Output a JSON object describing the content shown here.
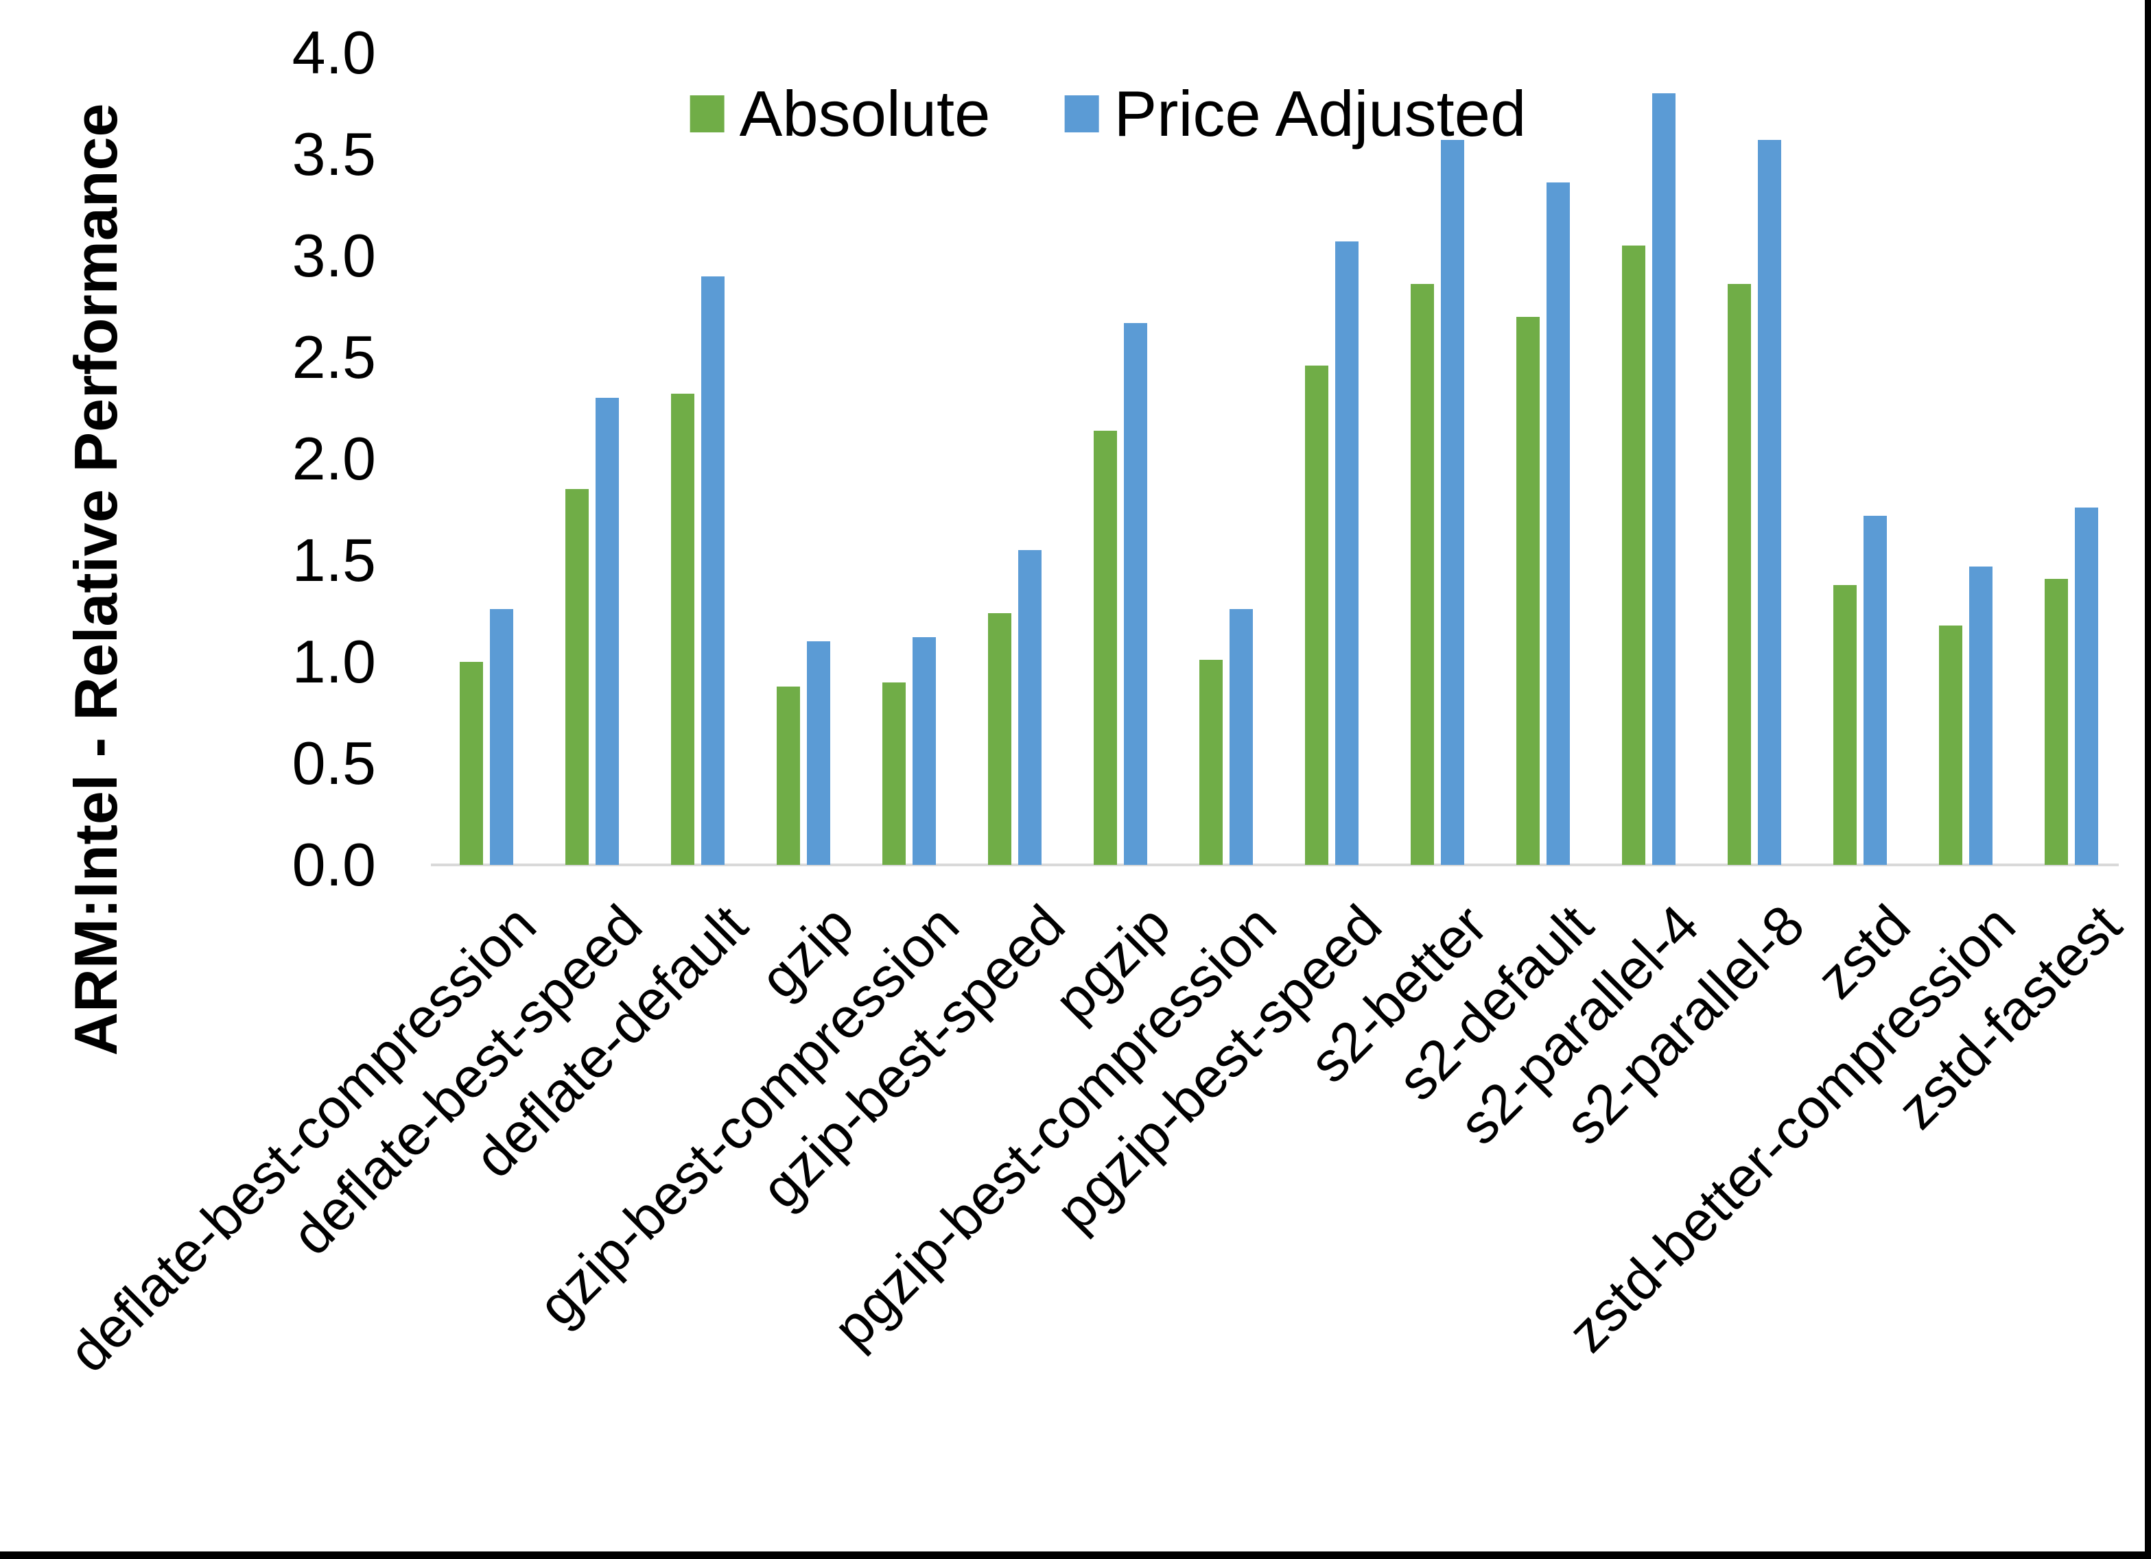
{
  "y_axis": {
    "title": "ARM:Intel - Relative Performance",
    "tick_labels": [
      "0.0",
      "0.5",
      "1.0",
      "1.5",
      "2.0",
      "2.5",
      "3.0",
      "3.5",
      "4.0"
    ]
  },
  "legend": {
    "items": [
      {
        "label": "Absolute",
        "color": "#70AD47"
      },
      {
        "label": "Price Adjusted",
        "color": "#5B9BD5"
      }
    ]
  },
  "colors": {
    "absolute_green": "#70AD47",
    "price_adjusted_blue": "#5B9BD5",
    "axis_line_gray": "#D9D9D9",
    "window_border_black": "#000000"
  },
  "chart_data": {
    "type": "bar",
    "title": "",
    "xlabel": "",
    "ylabel": "ARM:Intel - Relative Performance",
    "ylim": [
      0.0,
      4.0
    ],
    "ytick_step": 0.5,
    "grid": false,
    "legend_position": "top-center",
    "categories": [
      "deflate-best-compression",
      "deflate-best-speed",
      "deflate-default",
      "gzip",
      "gzip-best-compression",
      "gzip-best-speed",
      "pgzip",
      "pgzip-best-compression",
      "pgzip-best-speed",
      "s2-better",
      "s2-default",
      "s2-parallel-4",
      "s2-parallel-8",
      "zstd",
      "zstd-better-compression",
      "zstd-fastest"
    ],
    "series": [
      {
        "name": "Absolute",
        "color": "#70AD47",
        "values": [
          1.0,
          1.85,
          2.32,
          0.88,
          0.9,
          1.24,
          2.14,
          1.01,
          2.46,
          2.86,
          2.7,
          3.05,
          2.86,
          1.38,
          1.18,
          1.41
        ]
      },
      {
        "name": "Price Adjusted",
        "color": "#5B9BD5",
        "values": [
          1.26,
          2.3,
          2.9,
          1.1,
          1.12,
          1.55,
          2.67,
          1.26,
          3.07,
          3.57,
          3.36,
          3.8,
          3.57,
          1.72,
          1.47,
          1.76
        ]
      }
    ]
  }
}
